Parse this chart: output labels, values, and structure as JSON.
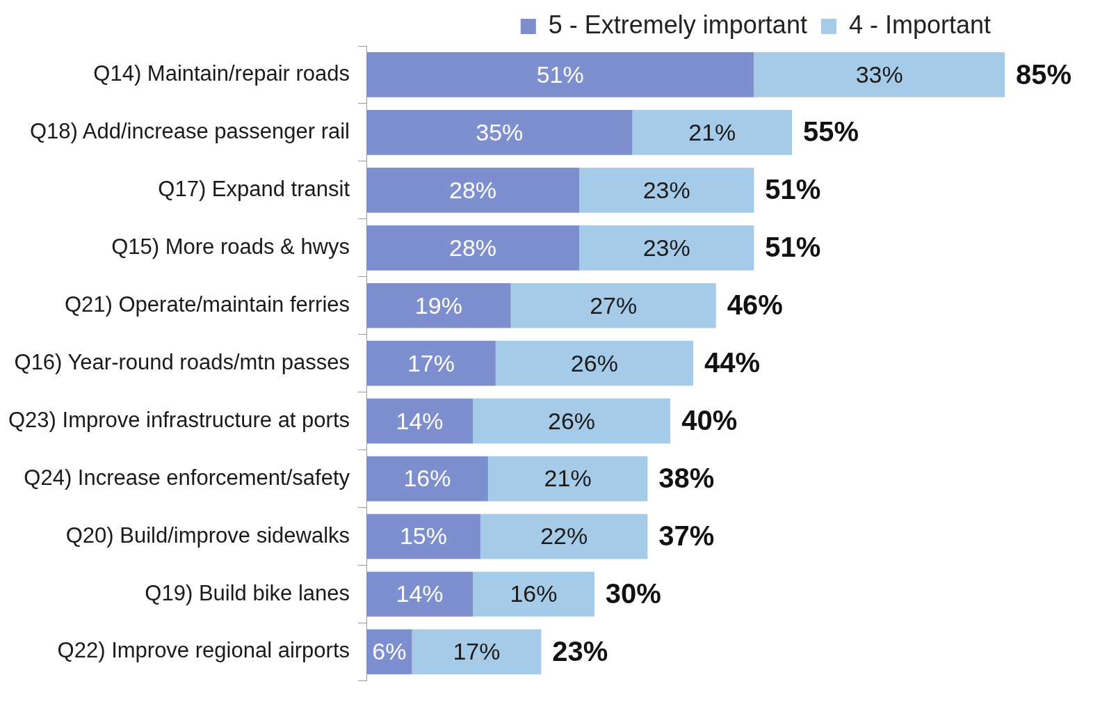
{
  "chart_data": {
    "type": "bar",
    "orientation": "horizontal",
    "stacked": true,
    "legend": "top right",
    "categories": [
      "Q14) Maintain/repair roads",
      "Q18) Add/increase passenger rail",
      "Q17) Expand transit",
      "Q15) More roads & hwys",
      "Q21) Operate/maintain ferries",
      "Q16) Year-round roads/mtn passes",
      "Q23) Improve infrastructure at ports",
      "Q24) Increase enforcement/safety",
      "Q20) Build/improve sidewalks",
      "Q19) Build bike lanes",
      "Q22) Improve regional airports"
    ],
    "series": [
      {
        "name": "5 - Extremely important",
        "color": "#7e8fcf",
        "values": [
          51,
          35,
          28,
          28,
          19,
          17,
          14,
          16,
          15,
          14,
          6
        ],
        "value_labels": [
          "51%",
          "35%",
          "28%",
          "28%",
          "19%",
          "17%",
          "14%",
          "16%",
          "15%",
          "14%",
          "6%"
        ]
      },
      {
        "name": "4 - Important",
        "color": "#a6cbe8",
        "values": [
          33,
          21,
          23,
          23,
          27,
          26,
          26,
          21,
          22,
          16,
          17
        ],
        "value_labels": [
          "33%",
          "21%",
          "23%",
          "23%",
          "27%",
          "26%",
          "26%",
          "21%",
          "22%",
          "16%",
          "17%"
        ]
      }
    ],
    "totals": [
      "85%",
      "55%",
      "51%",
      "51%",
      "46%",
      "44%",
      "40%",
      "38%",
      "37%",
      "30%",
      "23%"
    ]
  }
}
